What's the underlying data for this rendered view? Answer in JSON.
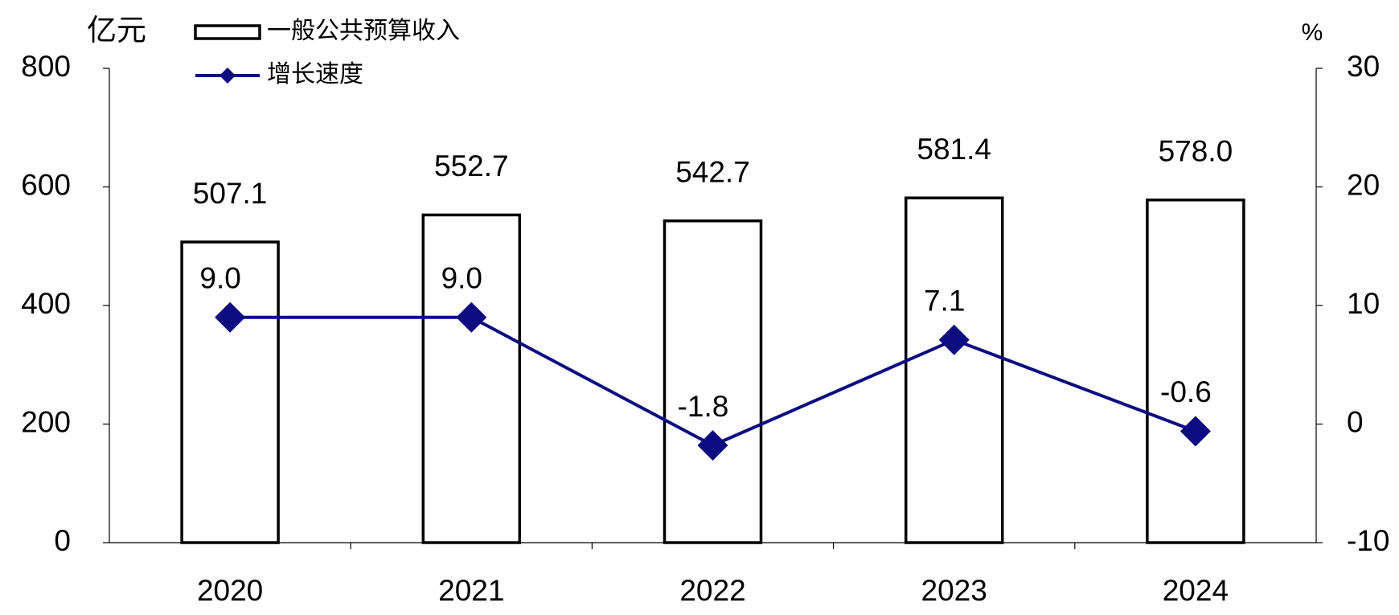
{
  "chart_data": {
    "type": "bar",
    "ylabel": "亿元",
    "y2label": "%",
    "categories": [
      "2020",
      "2021",
      "2022",
      "2023",
      "2024"
    ],
    "series": [
      {
        "name": "一般公共预算收入",
        "type": "bar",
        "color": "#000000",
        "values": [
          507.1,
          552.7,
          542.7,
          581.4,
          578.0
        ],
        "value_labels": [
          "507.1",
          "552.7",
          "542.7",
          "581.4",
          "578.0"
        ]
      },
      {
        "name": "增长速度",
        "type": "line",
        "axis": "y2",
        "color": "#0c0c80",
        "values": [
          9.0,
          9.0,
          -1.8,
          7.1,
          -0.6
        ],
        "value_labels": [
          "9.0",
          "9.0",
          "-1.8",
          "7.1",
          "-0.6"
        ]
      }
    ],
    "ylim": [
      0,
      800
    ],
    "yticks": [
      0,
      200,
      400,
      600,
      800
    ],
    "y2lim": [
      -10,
      30
    ],
    "y2ticks": [
      -10,
      0,
      10,
      20,
      30
    ],
    "grid": false
  }
}
